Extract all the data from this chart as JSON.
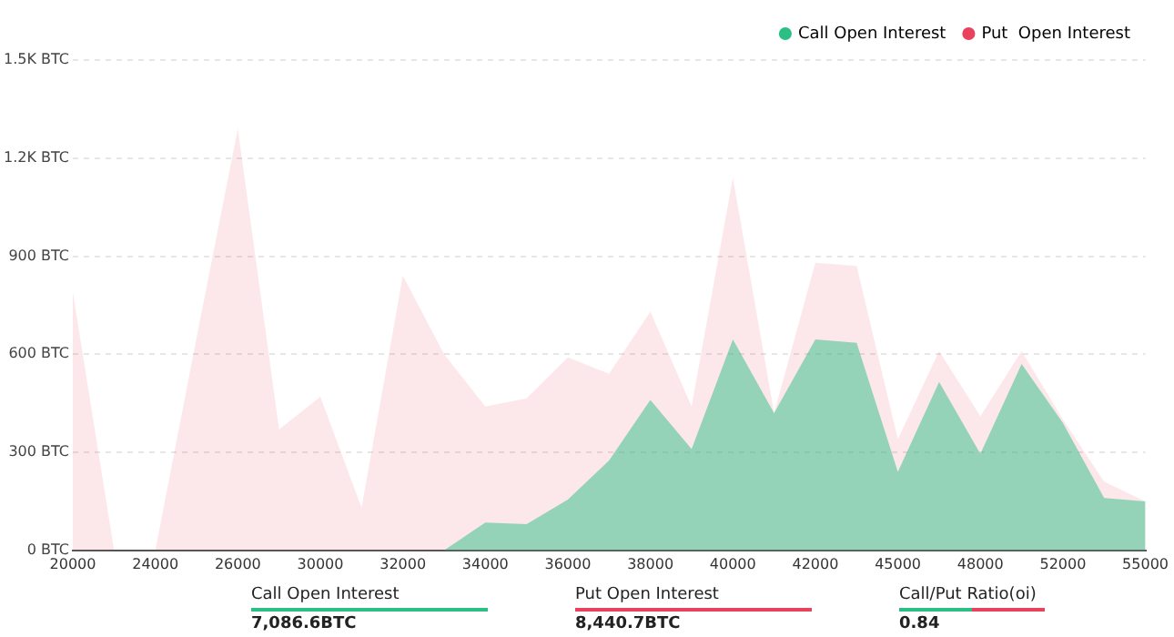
{
  "chart_data": {
    "type": "area",
    "categories": [
      "20000",
      null,
      "24000",
      null,
      "26000",
      null,
      "30000",
      null,
      "32000",
      null,
      "34000",
      null,
      "36000",
      null,
      "38000",
      null,
      "40000",
      null,
      "42000",
      null,
      "45000",
      null,
      "48000",
      null,
      "52000",
      null,
      "55000"
    ],
    "series": [
      {
        "name": "Call Open Interest",
        "color": "#2bbf85",
        "values": [
          0,
          0,
          0,
          0,
          0,
          0,
          0,
          0,
          0,
          0,
          85,
          80,
          155,
          275,
          460,
          310,
          645,
          420,
          645,
          635,
          240,
          515,
          295,
          570,
          390,
          160,
          150
        ]
      },
      {
        "name": "Put  Open Interest",
        "color": "#e8425c",
        "values": [
          790,
          0,
          0,
          650,
          1290,
          370,
          470,
          130,
          840,
          600,
          440,
          465,
          590,
          540,
          730,
          440,
          1140,
          420,
          880,
          870,
          340,
          610,
          410,
          610,
          400,
          210,
          150
        ]
      }
    ],
    "ylim": [
      0,
      1500
    ],
    "yticks": [
      {
        "value": 0,
        "label": "0 BTC"
      },
      {
        "value": 300,
        "label": "300 BTC"
      },
      {
        "value": 600,
        "label": "600 BTC"
      },
      {
        "value": 900,
        "label": "900 BTC"
      },
      {
        "value": 1200,
        "label": "1.2K BTC"
      },
      {
        "value": 1500,
        "label": "1.5K BTC"
      }
    ],
    "grid": "y",
    "legend": "top right",
    "annotations": [
      "Call Open Interest",
      "7,086.6BTC",
      "Put Open Interest",
      "8,440.7BTC",
      "Call/Put Ratio(oi)",
      "0.84"
    ]
  }
}
